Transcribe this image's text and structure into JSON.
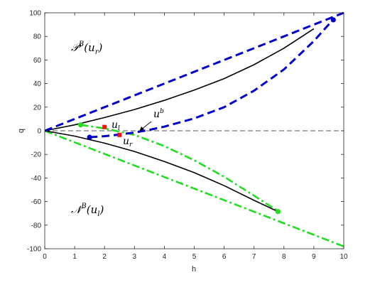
{
  "chart_data": {
    "type": "line",
    "xlabel": "h",
    "ylabel": "q",
    "xlim": [
      0,
      10
    ],
    "ylim": [
      -100,
      100
    ],
    "xticks": [
      0,
      1,
      2,
      3,
      4,
      5,
      6,
      7,
      8,
      9,
      10
    ],
    "yticks": [
      100,
      80,
      60,
      40,
      20,
      0,
      -20,
      -40,
      -60,
      -80,
      -100
    ],
    "xtick_labels": [
      "0",
      "1",
      "2",
      "3",
      "4",
      "5",
      "6",
      "7",
      "8",
      "9",
      "10"
    ],
    "ytick_labels": [
      "100",
      "80",
      "60",
      "40",
      "20",
      "0",
      "-20",
      "-40",
      "-60",
      "-80",
      "-100"
    ],
    "grid": false,
    "colors": {
      "blue": "#0000cc",
      "green": "#22dd22",
      "black": "#000000",
      "red": "#ee1111",
      "gray": "#555555"
    },
    "series": [
      {
        "style": "blue-dashed",
        "x": [
          0,
          10
        ],
        "y": [
          0,
          100
        ]
      },
      {
        "style": "blue-dashed",
        "x": [
          1.5,
          2.0,
          2.5,
          3.0,
          3.5,
          4.0,
          5.0,
          6.0,
          7.0,
          8.0,
          9.0,
          9.6
        ],
        "y": [
          -5.5,
          -4.6,
          -3.2,
          -1.5,
          0.8,
          3.5,
          10.5,
          20.0,
          34.0,
          52.0,
          76.0,
          93.0
        ]
      },
      {
        "style": "black-solid",
        "x": [
          0,
          1,
          2,
          3,
          4,
          5,
          6,
          7,
          8,
          9
        ],
        "y": [
          0,
          5.0,
          11.2,
          18.0,
          25.8,
          34.5,
          44.2,
          56.0,
          70.0,
          86.5
        ]
      },
      {
        "style": "black-solid",
        "x": [
          0,
          1,
          2,
          3,
          4,
          5,
          6,
          7,
          7.8
        ],
        "y": [
          0,
          -4.5,
          -10.5,
          -17.5,
          -26.0,
          -35.5,
          -46.5,
          -59.0,
          -68.5
        ]
      },
      {
        "style": "green-dashdot",
        "x": [
          0,
          10
        ],
        "y": [
          0,
          -98
        ]
      },
      {
        "style": "green-dashdot",
        "x": [
          1.2,
          2.0,
          3.0,
          4.0,
          5.0,
          6.0,
          7.0,
          7.8
        ],
        "y": [
          5.0,
          2.0,
          -3.5,
          -13.0,
          -25.0,
          -39.0,
          -55.0,
          -68.0
        ]
      },
      {
        "style": "gray-dashed",
        "x": [
          0,
          10
        ],
        "y": [
          0,
          0
        ]
      }
    ],
    "markers": [
      {
        "color": "blue",
        "shape": "circle",
        "x": 9.65,
        "y": 94
      },
      {
        "color": "blue",
        "shape": "circle",
        "x": 1.5,
        "y": -5.5
      },
      {
        "color": "green",
        "shape": "circle",
        "x": 1.2,
        "y": 5
      },
      {
        "color": "green",
        "shape": "circle",
        "x": 7.8,
        "y": -68.5
      },
      {
        "color": "red",
        "shape": "square",
        "x": 2.0,
        "y": 3.2
      },
      {
        "color": "red",
        "shape": "square",
        "x": 2.5,
        "y": -3.5
      }
    ],
    "annotations": {
      "p_main": "𝒫",
      "p_sup": "B",
      "p_arg": "(u",
      "p_sub": "r",
      "p_close": ")",
      "n_main": "𝒩",
      "n_sup": "B",
      "n_arg": "(u",
      "n_sub": "l",
      "n_close": ")",
      "ul_main": "u",
      "ul_sub": "l",
      "ur_main": "u",
      "ur_sub": "r",
      "ub_main": "u",
      "ub_sup": "b"
    }
  }
}
